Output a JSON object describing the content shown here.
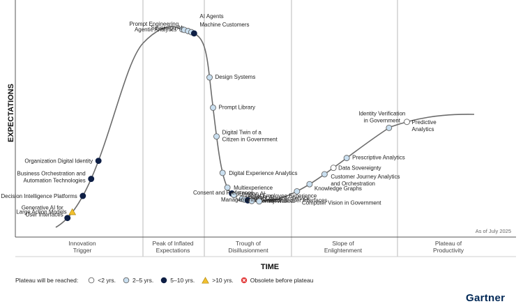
{
  "chart_data": {
    "type": "hype-cycle",
    "xlabel": "TIME",
    "ylabel": "EXPECTATIONS",
    "as_of": "As of July 2025",
    "phases": [
      {
        "id": "innovation",
        "lines": [
          "Innovation",
          "Trigger"
        ]
      },
      {
        "id": "peak",
        "lines": [
          "Peak of Inflated",
          "Expectations"
        ]
      },
      {
        "id": "trough",
        "lines": [
          "Trough of",
          "Disillusionment"
        ]
      },
      {
        "id": "slope",
        "lines": [
          "Slope of",
          "Enlightenment"
        ]
      },
      {
        "id": "plateau",
        "lines": [
          "Plateau of",
          "Productivity"
        ]
      }
    ],
    "legend_title": "Plateau will be reached:",
    "legend": [
      {
        "key": "lt2",
        "label": "<2 yrs."
      },
      {
        "key": "2to5",
        "label": "2–5 yrs."
      },
      {
        "key": "5to10",
        "label": "5–10 yrs."
      },
      {
        "key": "gt10",
        "label": ">10 yrs."
      },
      {
        "key": "obsolete",
        "label": "Obsolete before plateau"
      }
    ],
    "technologies": [
      {
        "name": [
          "Generative AI for",
          "User Interfaces"
        ],
        "phase": "innovation",
        "position": 0.135,
        "plateau": "5to10"
      },
      {
        "name": [
          "Large Action Models"
        ],
        "phase": "innovation",
        "position": 0.188,
        "plateau": "gt10"
      },
      {
        "name": [
          "Decision Intelligence Platforms"
        ],
        "phase": "innovation",
        "position": 0.31,
        "plateau": "5to10"
      },
      {
        "name": [
          "Business Orchestration and",
          "Automation Technologies"
        ],
        "phase": "innovation",
        "position": 0.405,
        "plateau": "5to10"
      },
      {
        "name": [
          "Organization Digital Identity"
        ],
        "phase": "innovation",
        "position": 0.49,
        "plateau": "5to10"
      },
      {
        "name": [
          "Agentic Analytics"
        ],
        "phase": "peak",
        "position": 0.64,
        "plateau": "2to5"
      },
      {
        "name": [
          "Prompt Engineering"
        ],
        "phase": "peak",
        "position": 0.675,
        "plateau": "2to5"
      },
      {
        "name": [
          "Sovereign AI"
        ],
        "phase": "peak",
        "position": 0.735,
        "plateau": "2to5"
      },
      {
        "name": [
          "AI Agents"
        ],
        "phase": "peak",
        "position": 0.79,
        "plateau": "2to5"
      },
      {
        "name": [
          "Machine Customers"
        ],
        "phase": "peak",
        "position": 0.835,
        "plateau": "5to10"
      },
      {
        "name": [
          "Design Systems"
        ],
        "phase": "trough",
        "position": 0.06,
        "plateau": "2to5"
      },
      {
        "name": [
          "Prompt Library"
        ],
        "phase": "trough",
        "position": 0.1,
        "plateau": "2to5"
      },
      {
        "name": [
          "Digital Twin of a",
          "Citizen in Government"
        ],
        "phase": "trough",
        "position": 0.14,
        "plateau": "2to5"
      },
      {
        "name": [
          "Digital Experience Analytics"
        ],
        "phase": "trough",
        "position": 0.21,
        "plateau": "2to5"
      },
      {
        "name": [
          "Multiexperience"
        ],
        "phase": "trough",
        "position": 0.265,
        "plateau": "2to5"
      },
      {
        "name": [
          "Emotion AI"
        ],
        "phase": "trough",
        "position": 0.315,
        "plateau": "5to10"
      },
      {
        "name": [
          "Generative AI"
        ],
        "phase": "trough",
        "position": 0.34,
        "plateau": "2to5"
      },
      {
        "name": [
          "Digital Employee Experience"
        ],
        "phase": "trough",
        "position": 0.4,
        "plateau": "lt2"
      },
      {
        "name": [
          "Digital Customer Service"
        ],
        "phase": "trough",
        "position": 0.43,
        "plateau": "2to5"
      },
      {
        "name": [
          "Conversational User Interfaces"
        ],
        "phase": "trough",
        "position": 0.46,
        "plateau": "2to5"
      },
      {
        "name": [
          "Superapps"
        ],
        "phase": "trough",
        "position": 0.5,
        "plateau": "5to10"
      },
      {
        "name": [
          "Identity Wallets"
        ],
        "phase": "trough",
        "position": 0.545,
        "plateau": "2to5"
      },
      {
        "name": [
          "Consent and Preference",
          "Management"
        ],
        "phase": "trough",
        "position": 0.63,
        "plateau": "2to5"
      },
      {
        "name": [
          "Computer Vision in Government"
        ],
        "phase": "slope",
        "position": 0.05,
        "plateau": "2to5"
      },
      {
        "name": [
          "Knowledge Graphs"
        ],
        "phase": "slope",
        "position": 0.17,
        "plateau": "2to5"
      },
      {
        "name": [
          "Customer Journey Analytics",
          "and Orchestration"
        ],
        "phase": "slope",
        "position": 0.31,
        "plateau": "2to5"
      },
      {
        "name": [
          "Data Sovereignty"
        ],
        "phase": "slope",
        "position": 0.395,
        "plateau": "lt2"
      },
      {
        "name": [
          "Prescriptive Analytics"
        ],
        "phase": "slope",
        "position": 0.52,
        "plateau": "2to5"
      },
      {
        "name": [
          "Identity Verification",
          "in Government"
        ],
        "phase": "slope",
        "position": 0.92,
        "plateau": "2to5"
      },
      {
        "name": [
          "Predictive",
          "Analytics"
        ],
        "phase": "plateau",
        "position": 0.12,
        "plateau": "lt2"
      }
    ]
  },
  "branding": {
    "text": "Gartner"
  }
}
